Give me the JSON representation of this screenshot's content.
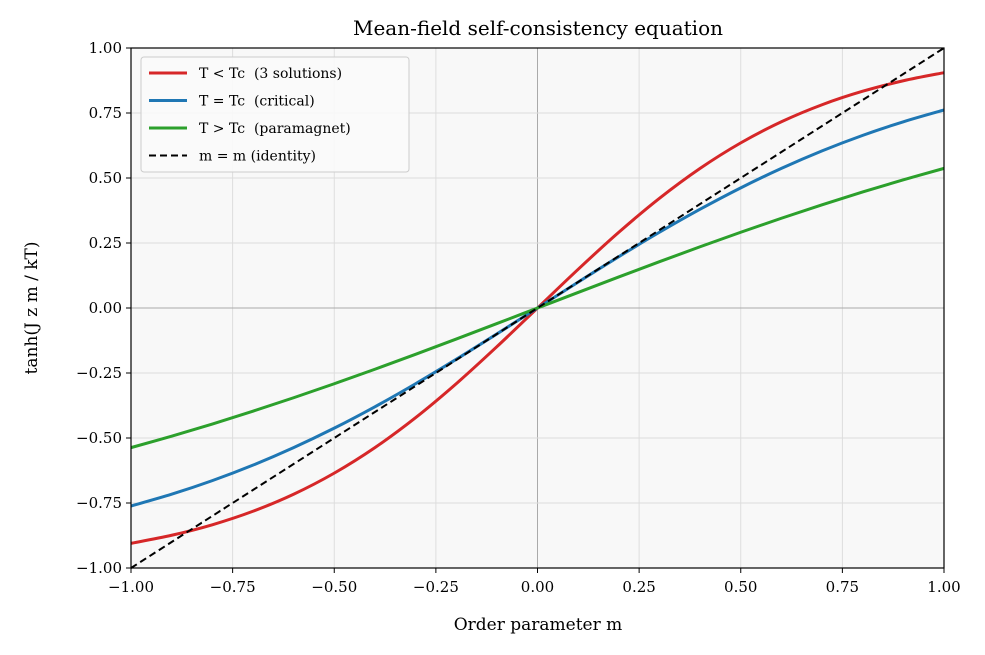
{
  "chart_data": {
    "type": "line",
    "title": "Mean-field self-consistency equation",
    "xlabel": "Order parameter m",
    "ylabel": "tanh(J z m / kT)",
    "xlim": [
      -1,
      1
    ],
    "ylim": [
      -1,
      1
    ],
    "xticks": [
      "−1.00",
      "−0.75",
      "−0.50",
      "−0.25",
      "0.00",
      "0.25",
      "0.50",
      "0.75",
      "1.00"
    ],
    "yticks": [
      "−1.00",
      "−0.75",
      "−0.50",
      "−0.25",
      "0.00",
      "0.25",
      "0.50",
      "0.75",
      "1.00"
    ],
    "grid": true,
    "legend_position": "top-left",
    "x": [
      -1,
      -0.9,
      -0.8,
      -0.7,
      -0.6,
      -0.5,
      -0.4,
      -0.3,
      -0.2,
      -0.1,
      0,
      0.1,
      0.2,
      0.3,
      0.4,
      0.5,
      0.6,
      0.7,
      0.8,
      0.9,
      1
    ],
    "series": [
      {
        "name": "T < Tc  (3 solutions)",
        "color": "#d62728",
        "dash": false,
        "values": [
          -0.9051,
          -0.8741,
          -0.8337,
          -0.7818,
          -0.7163,
          -0.6351,
          -0.537,
          -0.4219,
          -0.2913,
          -0.1489,
          0,
          0.1489,
          0.2913,
          0.4219,
          0.537,
          0.6351,
          0.7163,
          0.7818,
          0.8337,
          0.8741,
          0.9051
        ]
      },
      {
        "name": "T = Tc  (critical)",
        "color": "#1f77b4",
        "dash": false,
        "values": [
          -0.7616,
          -0.7163,
          -0.664,
          -0.6044,
          -0.537,
          -0.4621,
          -0.3799,
          -0.2913,
          -0.1974,
          -0.0997,
          0,
          0.0997,
          0.1974,
          0.2913,
          0.3799,
          0.4621,
          0.537,
          0.6044,
          0.664,
          0.7163,
          0.7616
        ]
      },
      {
        "name": "T > Tc  (paramagnet)",
        "color": "#2ca02c",
        "dash": false,
        "values": [
          -0.537,
          -0.493,
          -0.4462,
          -0.3969,
          -0.3452,
          -0.2913,
          -0.2355,
          -0.1781,
          -0.1194,
          -0.0599,
          0,
          0.0599,
          0.1194,
          0.1781,
          0.2355,
          0.2913,
          0.3452,
          0.3969,
          0.4462,
          0.493,
          0.537
        ]
      },
      {
        "name": "m = m (identity)",
        "color": "#000000",
        "dash": true,
        "values": [
          -1,
          -0.9,
          -0.8,
          -0.7,
          -0.6,
          -0.5,
          -0.4,
          -0.3,
          -0.2,
          -0.1,
          0,
          0.1,
          0.2,
          0.3,
          0.4,
          0.5,
          0.6,
          0.7,
          0.8,
          0.9,
          1
        ]
      }
    ]
  }
}
